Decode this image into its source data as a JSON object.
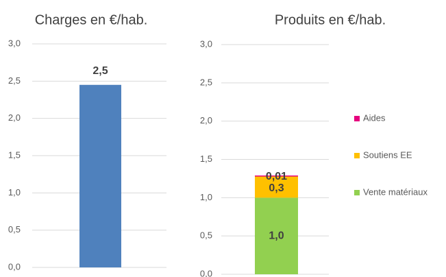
{
  "chart_data": [
    {
      "type": "bar",
      "title": "Charges en €/hab.",
      "categories": [
        null
      ],
      "values": [
        2.45
      ],
      "value_labels": [
        "2,5"
      ],
      "color": "#4f81bd",
      "ylim": [
        0,
        3
      ],
      "yticks": [
        {
          "value": 0,
          "label": "0,0"
        },
        {
          "value": 0.5,
          "label": "0,5"
        },
        {
          "value": 1,
          "label": "1,0"
        },
        {
          "value": 1.5,
          "label": "1,5"
        },
        {
          "value": 2,
          "label": "2,0"
        },
        {
          "value": 2.5,
          "label": "2,5"
        },
        {
          "value": 3,
          "label": "3,0"
        }
      ],
      "grid": true
    },
    {
      "type": "stacked_bar",
      "title": "Produits en €/hab.",
      "categories": [
        null
      ],
      "series": [
        {
          "name": "Vente matériaux",
          "color": "#92d050",
          "values": [
            1.0
          ],
          "value_labels": [
            "1,0"
          ]
        },
        {
          "name": "Soutiens EE",
          "color": "#ffc000",
          "values": [
            0.28
          ],
          "value_labels": [
            "0,3"
          ]
        },
        {
          "name": "Aides",
          "color": "#e6007e",
          "values": [
            0.01
          ],
          "value_labels": [
            "0,01"
          ]
        }
      ],
      "ylim": [
        0,
        3
      ],
      "yticks": [
        {
          "value": 0,
          "label": "0,0"
        },
        {
          "value": 0.5,
          "label": "0,5"
        },
        {
          "value": 1,
          "label": "1,0"
        },
        {
          "value": 1.5,
          "label": "1,5"
        },
        {
          "value": 2,
          "label": "2,0"
        },
        {
          "value": 2.5,
          "label": "2,5"
        },
        {
          "value": 3,
          "label": "3,0"
        }
      ],
      "grid": true,
      "legend": "right"
    }
  ]
}
